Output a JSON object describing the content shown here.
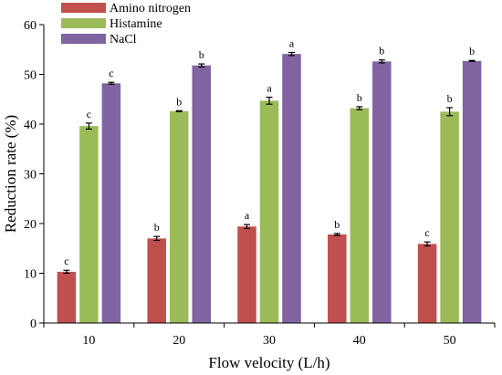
{
  "chart_data": {
    "type": "bar",
    "xlabel": "Flow velocity (L/h)",
    "ylabel": "Reduction rate (%)",
    "ylim": [
      0,
      60
    ],
    "yticks": [
      0,
      10,
      20,
      30,
      40,
      50,
      60
    ],
    "grid": false,
    "legend_position": "top-left",
    "categories": [
      "10",
      "20",
      "30",
      "40",
      "50"
    ],
    "series": [
      {
        "name": "Amino nitrogen",
        "color": "#C0504D",
        "values": [
          10.3,
          17.0,
          19.4,
          17.8,
          15.9
        ],
        "errors": [
          0.3,
          0.4,
          0.4,
          0.2,
          0.4
        ],
        "labels": [
          "c",
          "b",
          "a",
          "b",
          "c"
        ]
      },
      {
        "name": "Histamine",
        "color": "#9BBB59",
        "values": [
          39.6,
          42.6,
          44.7,
          43.2,
          42.5
        ],
        "errors": [
          0.6,
          0.1,
          0.7,
          0.3,
          0.8
        ],
        "labels": [
          "c",
          "b",
          "a",
          "b",
          "b"
        ]
      },
      {
        "name": "NaCl",
        "color": "#8064A2",
        "values": [
          48.2,
          51.8,
          54.1,
          52.6,
          52.7
        ],
        "errors": [
          0.2,
          0.3,
          0.3,
          0.3,
          0.1
        ],
        "labels": [
          "c",
          "b",
          "a",
          "b",
          "b"
        ]
      }
    ]
  }
}
